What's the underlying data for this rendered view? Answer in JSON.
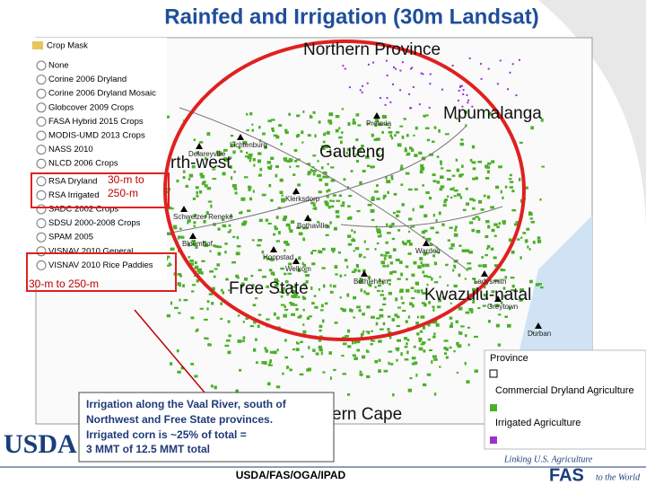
{
  "header": {
    "title": "Rainfed and Irrigation (30m Landsat)"
  },
  "layers": {
    "title": "Crop Mask",
    "items": [
      "None",
      "Corine 2006 Dryland",
      "Corine 2006 Dryland Mosaic",
      "Globcover 2009 Crops",
      "FASA Hybrid 2015 Crops",
      "MODIS-UMD 2013 Crops",
      "NASS 2010",
      "NLCD 2006 Crops",
      "RSA Dryland",
      "RSA Irrigated",
      "SADC 2002 Crops",
      "SDSU 2000-2008 Crops",
      "SPAM 2005",
      "VISNAV 2010 General",
      "VISNAV 2010 Rice Paddies"
    ]
  },
  "annotations": {
    "first": [
      "30-m to",
      "250-m"
    ],
    "second": "30-m to 250-m"
  },
  "map": {
    "provinces": [
      "Northern Province",
      "Mpumalanga",
      "rth-west",
      "Gauteng",
      "Free State",
      "Kwazulu-natal",
      "ern Cape"
    ],
    "towns": [
      "Pretoria",
      "Lichtenburg",
      "Delareyville",
      "Klerksdorp",
      "Schweizer Reneke",
      "Bothaville",
      "Bloemhof",
      "Hoopstad",
      "Welkom",
      "Bethlehem",
      "Warden",
      "Ladysmith",
      "Greytown",
      "Durban"
    ]
  },
  "callout": [
    "Irrigation along the Vaal River, south of",
    "Northwest and Free State provinces.",
    "Irrigated corn is ~25% of total =",
    "3 MMT of 12.5 MMT total"
  ],
  "legend": {
    "title": "Province",
    "items": [
      "Commercial Dryland Agriculture",
      "Irrigated Agriculture"
    ]
  },
  "footer": {
    "usda": "USDA",
    "credit": "USDA/FAS/OGA/IPAD",
    "tagline": "Linking U.S. Agriculture",
    "fas": "FAS",
    "world": "to the World"
  }
}
